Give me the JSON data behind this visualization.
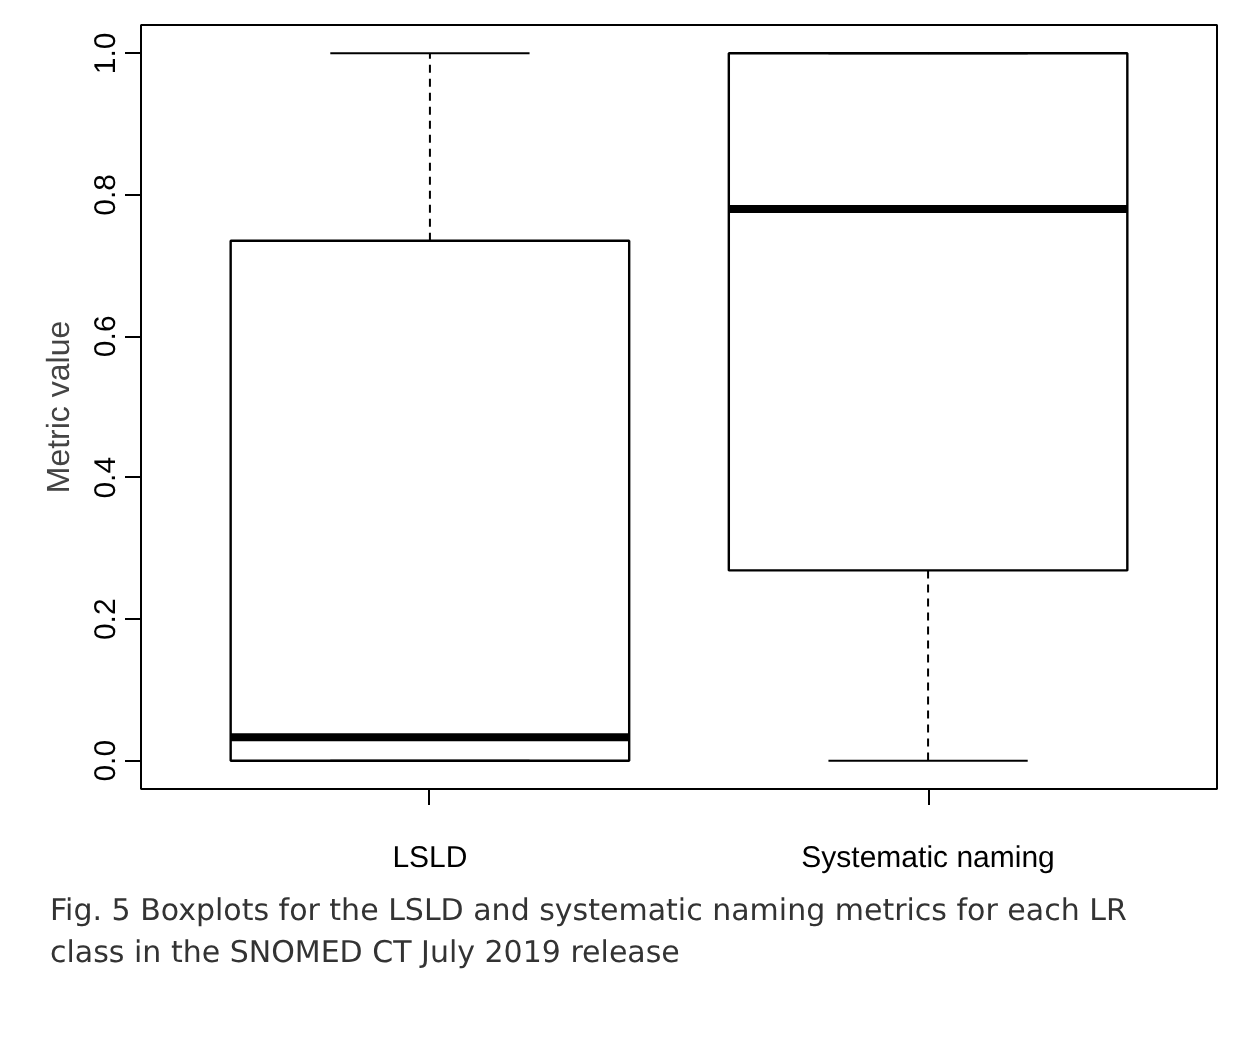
{
  "chart_data": {
    "type": "box",
    "ylabel": "Metric value",
    "categories": [
      "LSLD",
      "Systematic naming"
    ],
    "boxes": [
      {
        "low": 0,
        "q1": 0,
        "median": 0.033,
        "q3": 0.735,
        "high": 1.0
      },
      {
        "low": 0,
        "q1": 0.269,
        "median": 0.78,
        "q3": 1.0,
        "high": 1.0
      }
    ],
    "ylim": [
      -0.04,
      1.04
    ],
    "yticks": [
      {
        "value": 0,
        "label": "0.0"
      },
      {
        "value": 0.2,
        "label": "0.2"
      },
      {
        "value": 0.4,
        "label": "0.4"
      },
      {
        "value": 0.6,
        "label": "0.6"
      },
      {
        "value": 0.8,
        "label": "0.8"
      },
      {
        "value": 1,
        "label": "1.0"
      }
    ],
    "grid": false,
    "annotations": [
      "Fig. 5  Boxplots for the LSLD and systematic naming metrics for each LR class in the SNOMED CT July 2019 release"
    ]
  }
}
